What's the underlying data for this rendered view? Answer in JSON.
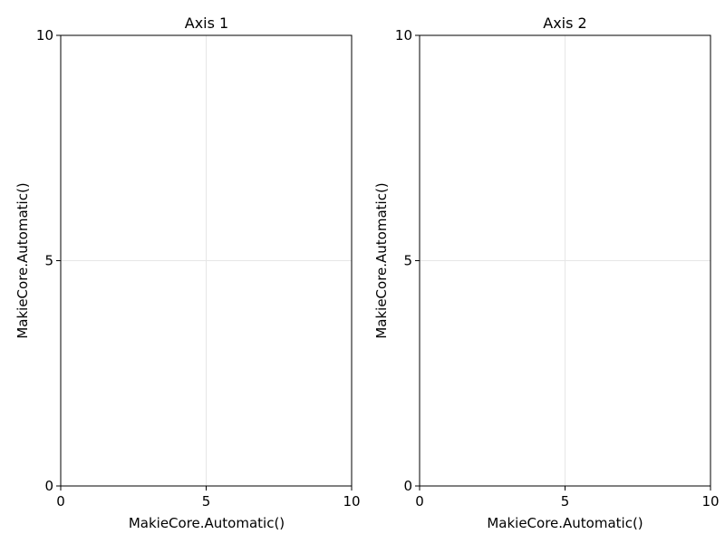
{
  "chart_data": [
    {
      "type": "scatter",
      "title": "Axis 1",
      "xlabel": "MakieCore.Automatic()",
      "ylabel": "MakieCore.Automatic()",
      "xlim": [
        0,
        10
      ],
      "ylim": [
        0,
        10
      ],
      "xticks": [
        0,
        5,
        10
      ],
      "yticks": [
        0,
        5,
        10
      ],
      "grid": true,
      "series": []
    },
    {
      "type": "scatter",
      "title": "Axis 2",
      "xlabel": "MakieCore.Automatic()",
      "ylabel": "MakieCore.Automatic()",
      "xlim": [
        0,
        10
      ],
      "ylim": [
        0,
        10
      ],
      "xticks": [
        0,
        5,
        10
      ],
      "yticks": [
        0,
        5,
        10
      ],
      "grid": true,
      "series": []
    }
  ]
}
